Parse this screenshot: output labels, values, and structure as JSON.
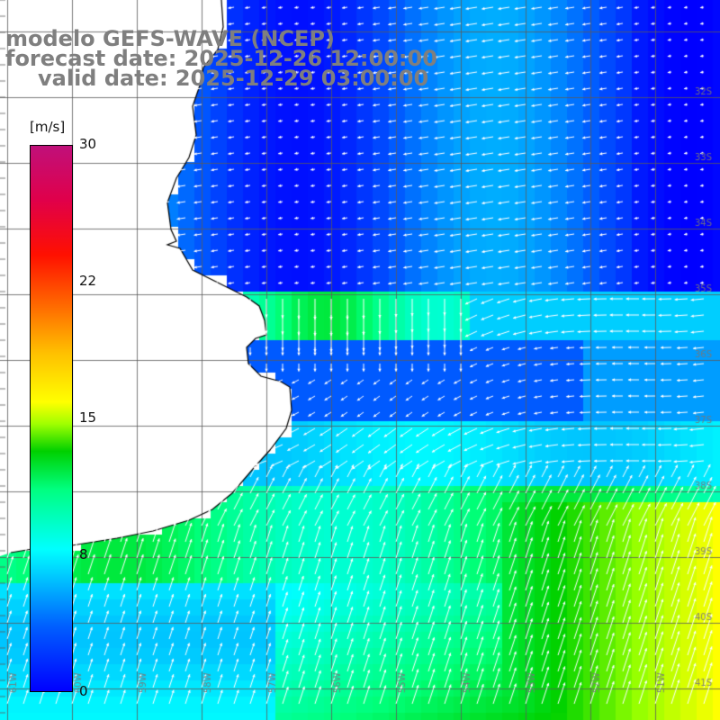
{
  "title": {
    "line1": "modelo GEFS-WAVE (NCEP)",
    "line2": "forecast date: 2025-12-26 12:00:00",
    "line3": "valid date: 2025-12-29 03:00:00"
  },
  "colorbar": {
    "unit": "[m/s]",
    "ticks": [
      {
        "label": "30",
        "value": 30
      },
      {
        "label": "22",
        "value": 22
      },
      {
        "label": "15",
        "value": 15
      },
      {
        "label": "8",
        "value": 8
      },
      {
        "label": "0",
        "value": 0
      }
    ],
    "range": [
      0,
      30
    ]
  },
  "map": {
    "lat_labels": [
      "32S",
      "33S",
      "34S",
      "35S",
      "36S",
      "37S",
      "38S",
      "39S",
      "40S",
      "41S"
    ],
    "lon_labels": [
      "61W",
      "60W",
      "59W",
      "58W",
      "57W",
      "56W",
      "55W",
      "54W",
      "53W",
      "52W",
      "51W"
    ],
    "grid": "on",
    "land_color": "#ffffff",
    "coast_color": "#000000",
    "arrow_color": "#ffffff"
  }
}
